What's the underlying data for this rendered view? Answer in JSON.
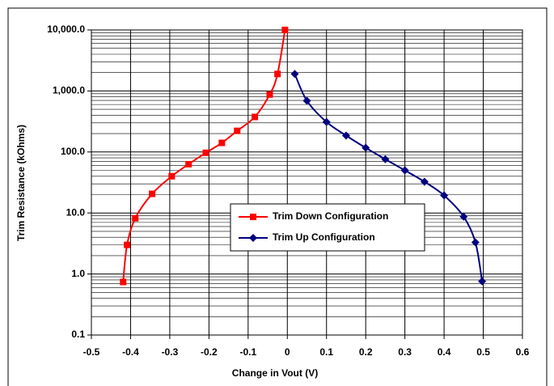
{
  "chart_data": {
    "type": "line",
    "x_label": "Change in Vout (V)",
    "y_label": "Trim Resistance (kOhms)",
    "xlim": [
      -0.5,
      0.6
    ],
    "xticks": [
      -0.5,
      -0.4,
      -0.3,
      -0.2,
      -0.1,
      0,
      0.1,
      0.2,
      0.3,
      0.4,
      0.5,
      0.6
    ],
    "ylim": [
      0.1,
      10000
    ],
    "yticks": [
      0.1,
      {
        "value": 1,
        "label": "1.0"
      },
      {
        "value": 10,
        "label": "10.0"
      },
      {
        "value": 100,
        "label": "100.0"
      },
      {
        "value": 1000,
        "label": "1,000.0"
      },
      {
        "value": 10000,
        "label": "10,000.0"
      }
    ],
    "log_y": true,
    "grid": true,
    "minor_grid": true,
    "legend": "center",
    "series": [
      {
        "name": "Trim Down Configuration",
        "color": "#ff0000",
        "marker": "square",
        "x": [
          -0.419,
          -0.409,
          -0.388,
          -0.345,
          -0.295,
          -0.252,
          -0.208,
          -0.167,
          -0.128,
          -0.083,
          -0.045,
          -0.025,
          -0.006
        ],
        "values": [
          0.74,
          3.0,
          8.2,
          20.6,
          40,
          63,
          97,
          141,
          222,
          375,
          875,
          1900,
          10000
        ]
      },
      {
        "name": "Trim Up Configuration",
        "color": "#000080",
        "marker": "diamond",
        "x": [
          0.019,
          0.05,
          0.1,
          0.15,
          0.2,
          0.25,
          0.3,
          0.35,
          0.4,
          0.45,
          0.48,
          0.497
        ],
        "values": [
          1900,
          690,
          310,
          186,
          117,
          76,
          50,
          32.5,
          19.4,
          8.7,
          3.3,
          0.76
        ]
      }
    ]
  }
}
